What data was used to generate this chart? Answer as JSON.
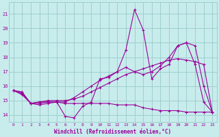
{
  "xlabel": "Windchill (Refroidissement éolien,°C)",
  "xlim": [
    -0.5,
    23.5
  ],
  "ylim": [
    13.5,
    21.8
  ],
  "yticks": [
    14,
    15,
    16,
    17,
    18,
    19,
    20,
    21
  ],
  "xticks": [
    0,
    1,
    2,
    3,
    4,
    5,
    6,
    7,
    8,
    9,
    10,
    11,
    12,
    13,
    14,
    15,
    16,
    17,
    18,
    19,
    20,
    21,
    22,
    23
  ],
  "bg_color": "#c8ecec",
  "grid_color": "#9ecece",
  "line_color": "#990099",
  "lines": [
    {
      "x": [
        0,
        1,
        2,
        3,
        4,
        5,
        6,
        7,
        8,
        9,
        10,
        11,
        12,
        13,
        14,
        15,
        16,
        17,
        18,
        19,
        20,
        21,
        22,
        23
      ],
      "y": [
        15.7,
        15.6,
        14.8,
        14.8,
        14.9,
        14.9,
        13.9,
        13.8,
        14.6,
        14.9,
        16.5,
        16.6,
        17.0,
        18.5,
        21.3,
        19.9,
        16.5,
        17.2,
        17.5,
        18.8,
        19.0,
        17.5,
        14.9,
        14.2
      ]
    },
    {
      "x": [
        0,
        1,
        2,
        3,
        4,
        5,
        6,
        7,
        8,
        9,
        10,
        11,
        12,
        13,
        14,
        15,
        16,
        17,
        18,
        19,
        20,
        21,
        22,
        23
      ],
      "y": [
        15.7,
        15.5,
        14.8,
        14.7,
        14.8,
        14.9,
        14.8,
        14.8,
        14.8,
        14.8,
        14.8,
        14.8,
        14.7,
        14.7,
        14.7,
        14.5,
        14.4,
        14.3,
        14.3,
        14.3,
        14.2,
        14.2,
        14.2,
        14.2
      ]
    },
    {
      "x": [
        0,
        1,
        2,
        3,
        4,
        5,
        6,
        7,
        8,
        9,
        10,
        11,
        12,
        13,
        14,
        15,
        16,
        17,
        18,
        19,
        20,
        21,
        22,
        23
      ],
      "y": [
        15.7,
        15.5,
        14.8,
        14.9,
        14.9,
        14.9,
        14.9,
        15.2,
        15.6,
        16.0,
        16.4,
        16.7,
        17.0,
        17.3,
        17.0,
        16.8,
        17.0,
        17.4,
        18.0,
        18.8,
        19.0,
        18.8,
        16.0,
        14.2
      ]
    },
    {
      "x": [
        0,
        1,
        2,
        3,
        4,
        5,
        6,
        7,
        8,
        9,
        10,
        11,
        12,
        13,
        14,
        15,
        16,
        17,
        18,
        19,
        20,
        21,
        22,
        23
      ],
      "y": [
        15.7,
        15.4,
        14.8,
        14.9,
        15.0,
        15.0,
        15.0,
        15.1,
        15.3,
        15.6,
        15.9,
        16.2,
        16.5,
        16.8,
        17.0,
        17.2,
        17.4,
        17.6,
        17.8,
        17.9,
        17.8,
        17.7,
        17.5,
        14.2
      ]
    }
  ]
}
